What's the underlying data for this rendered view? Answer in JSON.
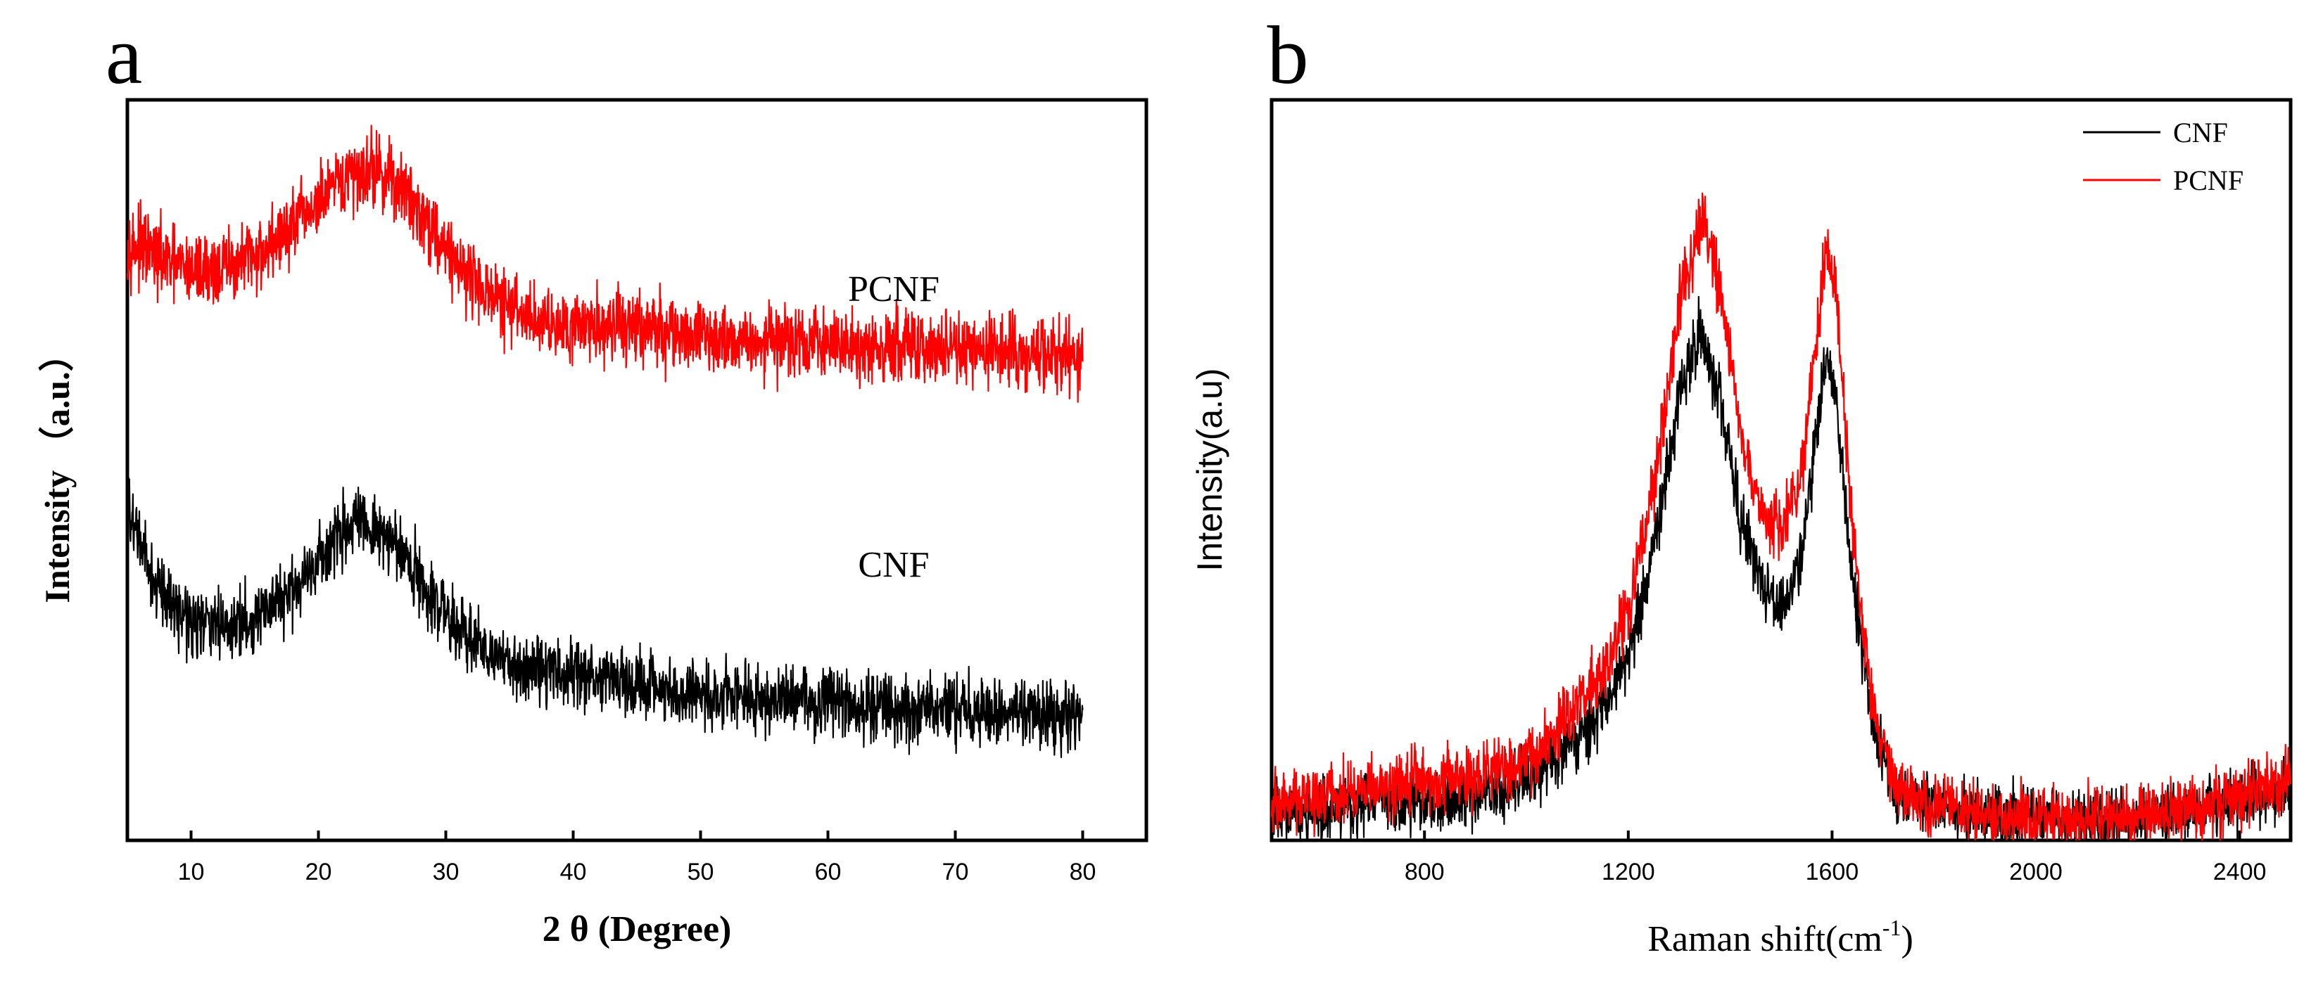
{
  "chart_data": [
    {
      "panel": "a",
      "type": "line",
      "title": "",
      "xlabel": "2 θ (Degree)",
      "ylabel": "Intensity （a.u.）",
      "xlim": [
        5,
        85
      ],
      "ylim": [
        0,
        100
      ],
      "x_ticks": [
        10,
        20,
        30,
        40,
        50,
        60,
        70,
        80
      ],
      "y_ticks_shown": false,
      "annotations": [
        "PCNF",
        "CNF"
      ],
      "series": [
        {
          "name": "PCNF",
          "color": "#ff0000",
          "x": [
            5,
            8,
            10,
            12,
            14,
            16,
            18,
            20,
            22,
            24,
            26,
            28,
            30,
            32,
            34,
            36,
            38,
            40,
            42,
            44,
            46,
            48,
            50,
            55,
            60,
            65,
            70,
            75,
            80
          ],
          "values": [
            81,
            78,
            77,
            77,
            78,
            80,
            83,
            86,
            89,
            91,
            89,
            85,
            80,
            76,
            73,
            71,
            70,
            70,
            69.5,
            69.5,
            69,
            68.5,
            68,
            67.5,
            67,
            66.5,
            66,
            65.8,
            65.5
          ],
          "noise": 3.5
        },
        {
          "name": "CNF",
          "color": "#000000",
          "x": [
            5,
            7,
            9,
            11,
            13,
            15,
            17,
            19,
            21,
            23,
            25,
            27,
            29,
            31,
            33,
            35,
            37,
            39,
            41,
            43,
            45,
            47,
            50,
            55,
            60,
            65,
            70,
            75,
            80
          ],
          "values": [
            45,
            35,
            31,
            29,
            29,
            30,
            32,
            36,
            40,
            42.5,
            41.5,
            38,
            33,
            29,
            26,
            24,
            23,
            22.5,
            22.5,
            22,
            21,
            20.5,
            20,
            19,
            18.5,
            18,
            17.5,
            17.2,
            17
          ],
          "noise": 3.2
        }
      ]
    },
    {
      "panel": "b",
      "type": "line",
      "title": "",
      "xlabel": "Raman shift(cm",
      "xlabel_superscript": "-1",
      "xlabel_suffix": ")",
      "ylabel": "Intensity(a.u)",
      "xlim": [
        500,
        2500
      ],
      "ylim": [
        0,
        100
      ],
      "x_ticks": [
        800,
        1200,
        1600,
        2000,
        2400
      ],
      "y_ticks_shown": false,
      "legend": {
        "position": "top-right",
        "entries": [
          "CNF",
          "PCNF"
        ]
      },
      "series": [
        {
          "name": "CNF",
          "color": "#000000",
          "x": [
            500,
            600,
            700,
            800,
            900,
            1000,
            1050,
            1100,
            1150,
            1200,
            1250,
            1300,
            1340,
            1380,
            1420,
            1460,
            1500,
            1540,
            1570,
            1590,
            1610,
            1640,
            1680,
            1720,
            1780,
            1850,
            2000,
            2200,
            2400,
            2500
          ],
          "values": [
            4,
            4,
            5,
            5,
            6,
            8,
            11,
            14,
            18,
            25,
            39,
            60,
            69,
            60,
            44,
            35,
            31,
            38,
            55,
            67,
            58,
            35,
            15,
            7,
            5,
            4,
            3,
            3,
            5,
            7
          ],
          "noise": 3
        },
        {
          "name": "PCNF",
          "color": "#ff0000",
          "x": [
            500,
            600,
            700,
            800,
            900,
            1000,
            1050,
            1100,
            1150,
            1200,
            1250,
            1300,
            1340,
            1380,
            1420,
            1460,
            1500,
            1540,
            1570,
            1590,
            1610,
            1640,
            1680,
            1720,
            1780,
            1850,
            2000,
            2200,
            2400,
            2500
          ],
          "values": [
            5,
            6,
            7,
            8,
            9,
            11,
            14,
            18,
            23,
            31,
            48,
            72,
            84,
            75,
            56,
            44,
            42,
            50,
            68,
            81,
            72,
            42,
            18,
            8,
            5,
            4,
            3,
            3,
            6,
            9
          ],
          "noise": 3
        }
      ]
    }
  ]
}
